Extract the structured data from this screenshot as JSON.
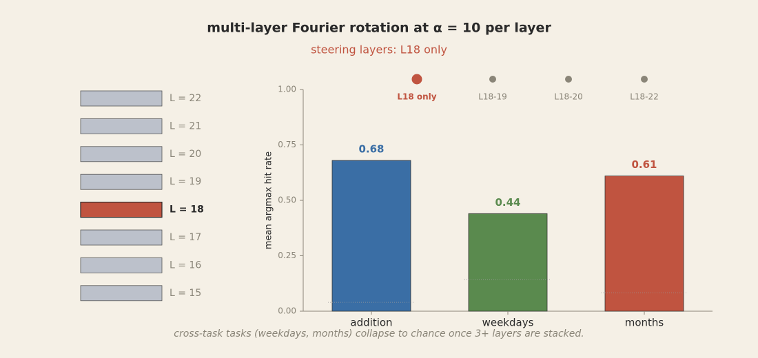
{
  "chart_data": {
    "type": "bar",
    "title": "multi-layer Fourier rotation at  α = 10  per layer",
    "subtitle": "steering layers: L18 only",
    "ylabel": "mean argmax hit rate",
    "categories": [
      "addition",
      "weekdays",
      "months"
    ],
    "values": [
      0.68,
      0.44,
      0.61
    ],
    "colors": [
      "#3a6ea5",
      "#5a8a4e",
      "#c05440"
    ],
    "chance_levels": [
      0.04,
      0.143,
      0.083
    ],
    "ylim": [
      0,
      1
    ],
    "yticks": [
      {
        "value": 0,
        "label": "0.00"
      },
      {
        "value": 0.25,
        "label": "0.25"
      },
      {
        "value": 0.5,
        "label": "0.50"
      },
      {
        "value": 0.75,
        "label": "0.75"
      },
      {
        "value": 1,
        "label": "1.00"
      }
    ],
    "steps": [
      "L18 only",
      "L18-19",
      "L18-20",
      "L18-22"
    ],
    "active_step": 0,
    "footnote": "cross-task tasks (weekdays, months) collapse to chance once 3+ layers are stacked."
  },
  "layers": {
    "labels": [
      "L = 22",
      "L = 21",
      "L = 20",
      "L = 19",
      "L = 18",
      "L = 17",
      "L = 16",
      "L = 15"
    ],
    "active": 4
  }
}
